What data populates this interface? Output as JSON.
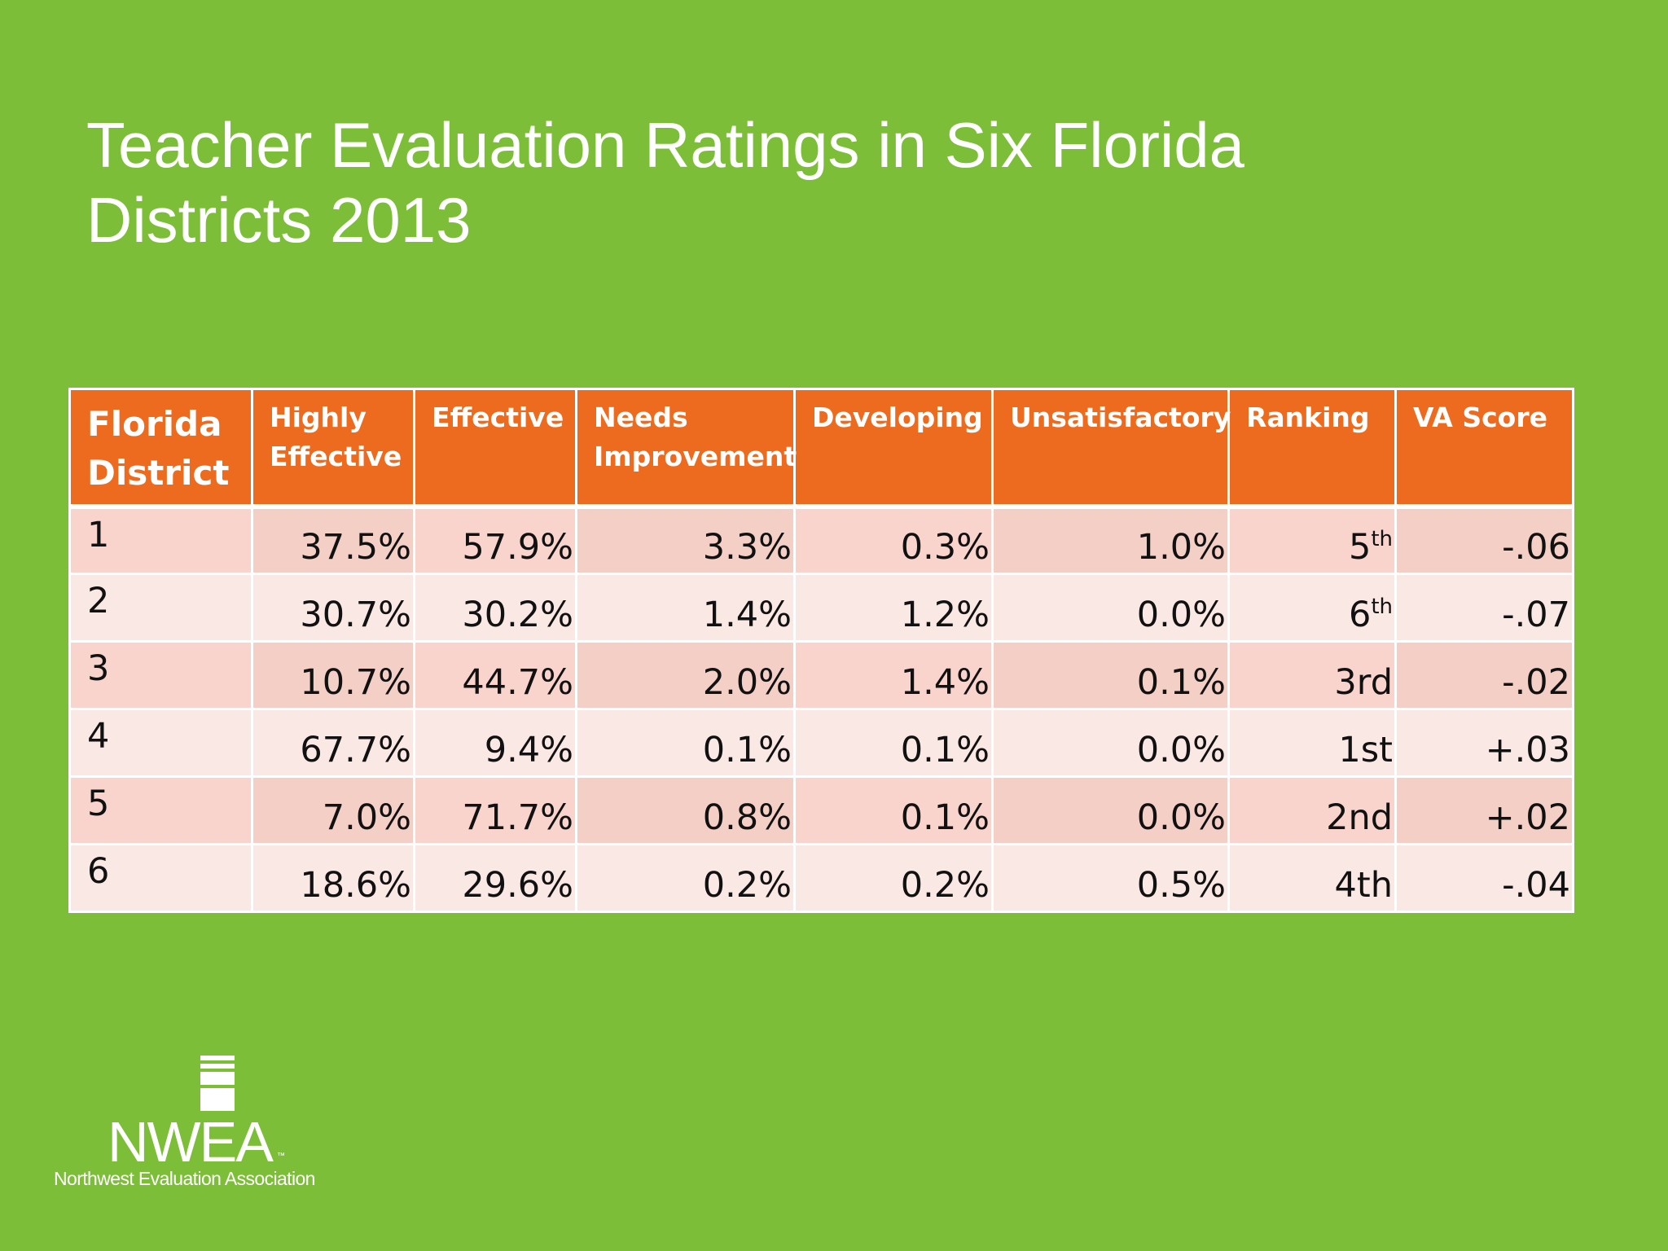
{
  "slide": {
    "title_line1": "Teacher Evaluation Ratings in Six Florida",
    "title_line2": "Districts 2013"
  },
  "table": {
    "headers": [
      "Florida District",
      "Highly Effective",
      "Effective",
      "Needs Improvement",
      "Developing",
      "Unsatisfactory",
      "Ranking",
      "VA Score"
    ],
    "rows": [
      {
        "district": "1",
        "highly_effective": "37.5%",
        "effective": "57.9%",
        "needs_improvement": "3.3%",
        "developing": "0.3%",
        "unsatisfactory": "1.0%",
        "ranking_num": "5",
        "ranking_suffix": "th",
        "va_score": "-.06"
      },
      {
        "district": "2",
        "highly_effective": "30.7%",
        "effective": "30.2%",
        "needs_improvement": "1.4%",
        "developing": "1.2%",
        "unsatisfactory": "0.0%",
        "ranking_num": "6",
        "ranking_suffix": "th",
        "va_score": "-.07"
      },
      {
        "district": "3",
        "highly_effective": "10.7%",
        "effective": "44.7%",
        "needs_improvement": "2.0%",
        "developing": "1.4%",
        "unsatisfactory": "0.1%",
        "ranking": "3rd",
        "va_score": "-.02"
      },
      {
        "district": "4",
        "highly_effective": "67.7%",
        "effective": "9.4%",
        "needs_improvement": "0.1%",
        "developing": "0.1%",
        "unsatisfactory": "0.0%",
        "ranking": "1st",
        "va_score": "+.03"
      },
      {
        "district": "5",
        "highly_effective": "7.0%",
        "effective": "71.7%",
        "needs_improvement": "0.8%",
        "developing": "0.1%",
        "unsatisfactory": "0.0%",
        "ranking": "2nd",
        "va_score": "+.02"
      },
      {
        "district": "6",
        "highly_effective": "18.6%",
        "effective": "29.6%",
        "needs_improvement": "0.2%",
        "developing": "0.2%",
        "unsatisfactory": "0.5%",
        "ranking": "4th",
        "va_score": "-.04"
      }
    ]
  },
  "logo": {
    "wordmark": "NWEA",
    "trademark": "™",
    "tagline": "Northwest Evaluation Association"
  },
  "colors": {
    "background": "#7dbe38",
    "header": "#ec6b1e",
    "row_dark": "#f8d4cc",
    "row_light": "#fae8e4",
    "title_text": "#ffffff"
  }
}
